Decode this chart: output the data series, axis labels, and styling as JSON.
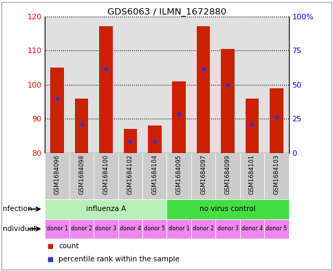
{
  "title": "GDS6063 / ILMN_1672880",
  "samples": [
    "GSM1684096",
    "GSM1684098",
    "GSM1684100",
    "GSM1684102",
    "GSM1684104",
    "GSM1684095",
    "GSM1684097",
    "GSM1684099",
    "GSM1684101",
    "GSM1684103"
  ],
  "bar_tops": [
    105,
    96,
    117,
    87,
    88,
    101,
    117,
    110.5,
    96,
    99
  ],
  "bar_bottom": 80,
  "blue_dots": [
    96,
    88.5,
    104.5,
    83.5,
    83.5,
    91.5,
    104.5,
    100,
    88.5,
    90.5
  ],
  "ylim": [
    80,
    120
  ],
  "yticks_left": [
    80,
    90,
    100,
    110,
    120
  ],
  "bar_color": "#cc2200",
  "dot_color": "#3333cc",
  "bg_color": "#e0e0e0",
  "inf_color_1": "#b8f0b8",
  "inf_color_2": "#44dd44",
  "ind_color": "#ee88ee",
  "legend_count_color": "#cc2200",
  "legend_dot_color": "#3333cc",
  "individual_labels": [
    "donor 1",
    "donor 2",
    "donor 3",
    "donor 4",
    "donor 5",
    "donor 1",
    "donor 2",
    "donor 3",
    "donor 4",
    "donor 5"
  ]
}
